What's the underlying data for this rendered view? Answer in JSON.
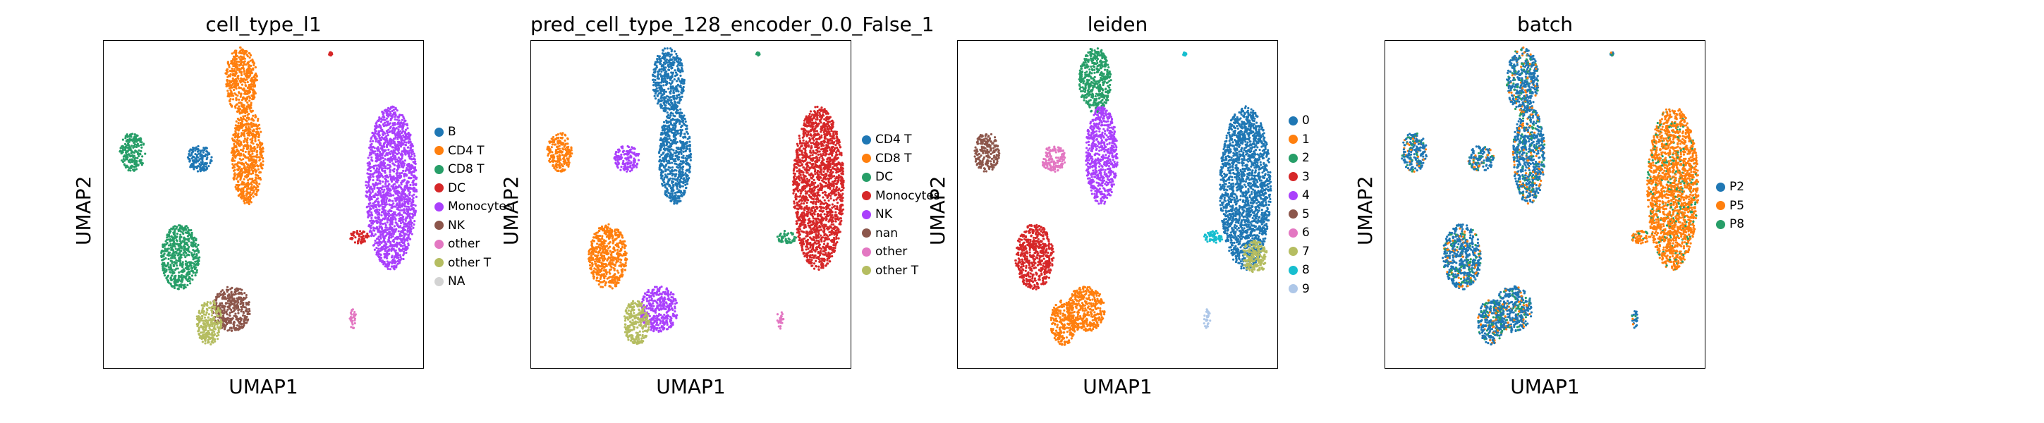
{
  "chart_data": [
    {
      "type": "scatter",
      "title": "cell_type_l1",
      "xlabel": "UMAP1",
      "ylabel": "UMAP2",
      "legend_placement": "right",
      "legend": [
        {
          "label": "B",
          "color": "#1f77b4"
        },
        {
          "label": "CD4 T",
          "color": "#ff7f0e"
        },
        {
          "label": "CD8 T",
          "color": "#279e68"
        },
        {
          "label": "DC",
          "color": "#d62728"
        },
        {
          "label": "Monocytes",
          "color": "#aa40fc"
        },
        {
          "label": "NK",
          "color": "#8c564b"
        },
        {
          "label": "other",
          "color": "#e377c2"
        },
        {
          "label": "other T",
          "color": "#b5bd61"
        },
        {
          "label": "NA",
          "color": "#d3d3d3"
        }
      ],
      "clusters": [
        {
          "c": 1,
          "x": 0.43,
          "y": 0.12,
          "rx": 0.05,
          "ry": 0.1
        },
        {
          "c": 1,
          "x": 0.45,
          "y": 0.35,
          "rx": 0.05,
          "ry": 0.15
        },
        {
          "c": 2,
          "x": 0.09,
          "y": 0.34,
          "rx": 0.04,
          "ry": 0.06
        },
        {
          "c": 0,
          "x": 0.3,
          "y": 0.36,
          "rx": 0.04,
          "ry": 0.04
        },
        {
          "c": 2,
          "x": 0.24,
          "y": 0.66,
          "rx": 0.06,
          "ry": 0.1
        },
        {
          "c": 5,
          "x": 0.4,
          "y": 0.82,
          "rx": 0.06,
          "ry": 0.07
        },
        {
          "c": 7,
          "x": 0.33,
          "y": 0.86,
          "rx": 0.04,
          "ry": 0.07
        },
        {
          "c": 4,
          "x": 0.9,
          "y": 0.45,
          "rx": 0.08,
          "ry": 0.25
        },
        {
          "c": 3,
          "x": 0.8,
          "y": 0.6,
          "rx": 0.03,
          "ry": 0.02
        },
        {
          "c": 6,
          "x": 0.78,
          "y": 0.85,
          "rx": 0.01,
          "ry": 0.03
        },
        {
          "c": 3,
          "x": 0.71,
          "y": 0.04,
          "rx": 0.005,
          "ry": 0.005
        }
      ]
    },
    {
      "type": "scatter",
      "title": "pred_cell_type_128_encoder_0.0_False_1",
      "xlabel": "UMAP1",
      "ylabel": "UMAP2",
      "legend_placement": "right",
      "legend": [
        {
          "label": "CD4 T",
          "color": "#1f77b4"
        },
        {
          "label": "CD8 T",
          "color": "#ff7f0e"
        },
        {
          "label": "DC",
          "color": "#279e68"
        },
        {
          "label": "Monocytes",
          "color": "#d62728"
        },
        {
          "label": "NK",
          "color": "#aa40fc"
        },
        {
          "label": "nan",
          "color": "#8c564b"
        },
        {
          "label": "other",
          "color": "#e377c2"
        },
        {
          "label": "other T",
          "color": "#b5bd61"
        }
      ],
      "clusters": [
        {
          "c": 0,
          "x": 0.43,
          "y": 0.12,
          "rx": 0.05,
          "ry": 0.1
        },
        {
          "c": 0,
          "x": 0.45,
          "y": 0.35,
          "rx": 0.05,
          "ry": 0.15
        },
        {
          "c": 1,
          "x": 0.09,
          "y": 0.34,
          "rx": 0.04,
          "ry": 0.06
        },
        {
          "c": 4,
          "x": 0.3,
          "y": 0.36,
          "rx": 0.04,
          "ry": 0.04
        },
        {
          "c": 1,
          "x": 0.24,
          "y": 0.66,
          "rx": 0.06,
          "ry": 0.1
        },
        {
          "c": 4,
          "x": 0.4,
          "y": 0.82,
          "rx": 0.06,
          "ry": 0.07
        },
        {
          "c": 7,
          "x": 0.33,
          "y": 0.86,
          "rx": 0.04,
          "ry": 0.07
        },
        {
          "c": 3,
          "x": 0.9,
          "y": 0.45,
          "rx": 0.08,
          "ry": 0.25
        },
        {
          "c": 2,
          "x": 0.8,
          "y": 0.6,
          "rx": 0.03,
          "ry": 0.02
        },
        {
          "c": 6,
          "x": 0.78,
          "y": 0.85,
          "rx": 0.01,
          "ry": 0.03
        },
        {
          "c": 2,
          "x": 0.71,
          "y": 0.04,
          "rx": 0.005,
          "ry": 0.005
        }
      ]
    },
    {
      "type": "scatter",
      "title": "leiden",
      "xlabel": "UMAP1",
      "ylabel": "UMAP2",
      "legend_placement": "right",
      "legend": [
        {
          "label": "0",
          "color": "#1f77b4"
        },
        {
          "label": "1",
          "color": "#ff7f0e"
        },
        {
          "label": "2",
          "color": "#279e68"
        },
        {
          "label": "3",
          "color": "#d62728"
        },
        {
          "label": "4",
          "color": "#aa40fc"
        },
        {
          "label": "5",
          "color": "#8c564b"
        },
        {
          "label": "6",
          "color": "#e377c2"
        },
        {
          "label": "7",
          "color": "#b5bd61"
        },
        {
          "label": "8",
          "color": "#17becf"
        },
        {
          "label": "9",
          "color": "#aec7e8"
        }
      ],
      "clusters": [
        {
          "c": 2,
          "x": 0.43,
          "y": 0.12,
          "rx": 0.05,
          "ry": 0.1
        },
        {
          "c": 4,
          "x": 0.45,
          "y": 0.35,
          "rx": 0.05,
          "ry": 0.15
        },
        {
          "c": 5,
          "x": 0.09,
          "y": 0.34,
          "rx": 0.04,
          "ry": 0.06
        },
        {
          "c": 6,
          "x": 0.3,
          "y": 0.36,
          "rx": 0.04,
          "ry": 0.04
        },
        {
          "c": 3,
          "x": 0.24,
          "y": 0.66,
          "rx": 0.06,
          "ry": 0.1
        },
        {
          "c": 1,
          "x": 0.4,
          "y": 0.82,
          "rx": 0.06,
          "ry": 0.07
        },
        {
          "c": 1,
          "x": 0.33,
          "y": 0.86,
          "rx": 0.04,
          "ry": 0.07
        },
        {
          "c": 0,
          "x": 0.9,
          "y": 0.45,
          "rx": 0.08,
          "ry": 0.25
        },
        {
          "c": 8,
          "x": 0.8,
          "y": 0.6,
          "rx": 0.03,
          "ry": 0.02
        },
        {
          "c": 7,
          "x": 0.93,
          "y": 0.66,
          "rx": 0.04,
          "ry": 0.05
        },
        {
          "c": 9,
          "x": 0.78,
          "y": 0.85,
          "rx": 0.01,
          "ry": 0.03
        },
        {
          "c": 8,
          "x": 0.71,
          "y": 0.04,
          "rx": 0.005,
          "ry": 0.005
        }
      ]
    },
    {
      "type": "scatter",
      "title": "batch",
      "xlabel": "UMAP1",
      "ylabel": "UMAP2",
      "legend_placement": "right",
      "legend": [
        {
          "label": "P2",
          "color": "#1f77b4"
        },
        {
          "label": "P5",
          "color": "#ff7f0e"
        },
        {
          "label": "P8",
          "color": "#279e68"
        }
      ],
      "clusters": [
        {
          "c": 0,
          "x": 0.43,
          "y": 0.12,
          "rx": 0.05,
          "ry": 0.1
        },
        {
          "c": 0,
          "x": 0.45,
          "y": 0.35,
          "rx": 0.05,
          "ry": 0.15
        },
        {
          "c": 0,
          "x": 0.09,
          "y": 0.34,
          "rx": 0.04,
          "ry": 0.06
        },
        {
          "c": 0,
          "x": 0.3,
          "y": 0.36,
          "rx": 0.04,
          "ry": 0.04
        },
        {
          "c": 0,
          "x": 0.24,
          "y": 0.66,
          "rx": 0.06,
          "ry": 0.1
        },
        {
          "c": 0,
          "x": 0.4,
          "y": 0.82,
          "rx": 0.06,
          "ry": 0.07
        },
        {
          "c": 0,
          "x": 0.33,
          "y": 0.86,
          "rx": 0.04,
          "ry": 0.07
        },
        {
          "c": 1,
          "x": 0.9,
          "y": 0.45,
          "rx": 0.08,
          "ry": 0.25
        },
        {
          "c": 1,
          "x": 0.8,
          "y": 0.6,
          "rx": 0.03,
          "ry": 0.02
        },
        {
          "c": 0,
          "x": 0.78,
          "y": 0.85,
          "rx": 0.01,
          "ry": 0.03
        },
        {
          "c": 0,
          "x": 0.71,
          "y": 0.04,
          "rx": 0.005,
          "ry": 0.005
        }
      ],
      "mix": [
        1,
        2
      ]
    }
  ]
}
